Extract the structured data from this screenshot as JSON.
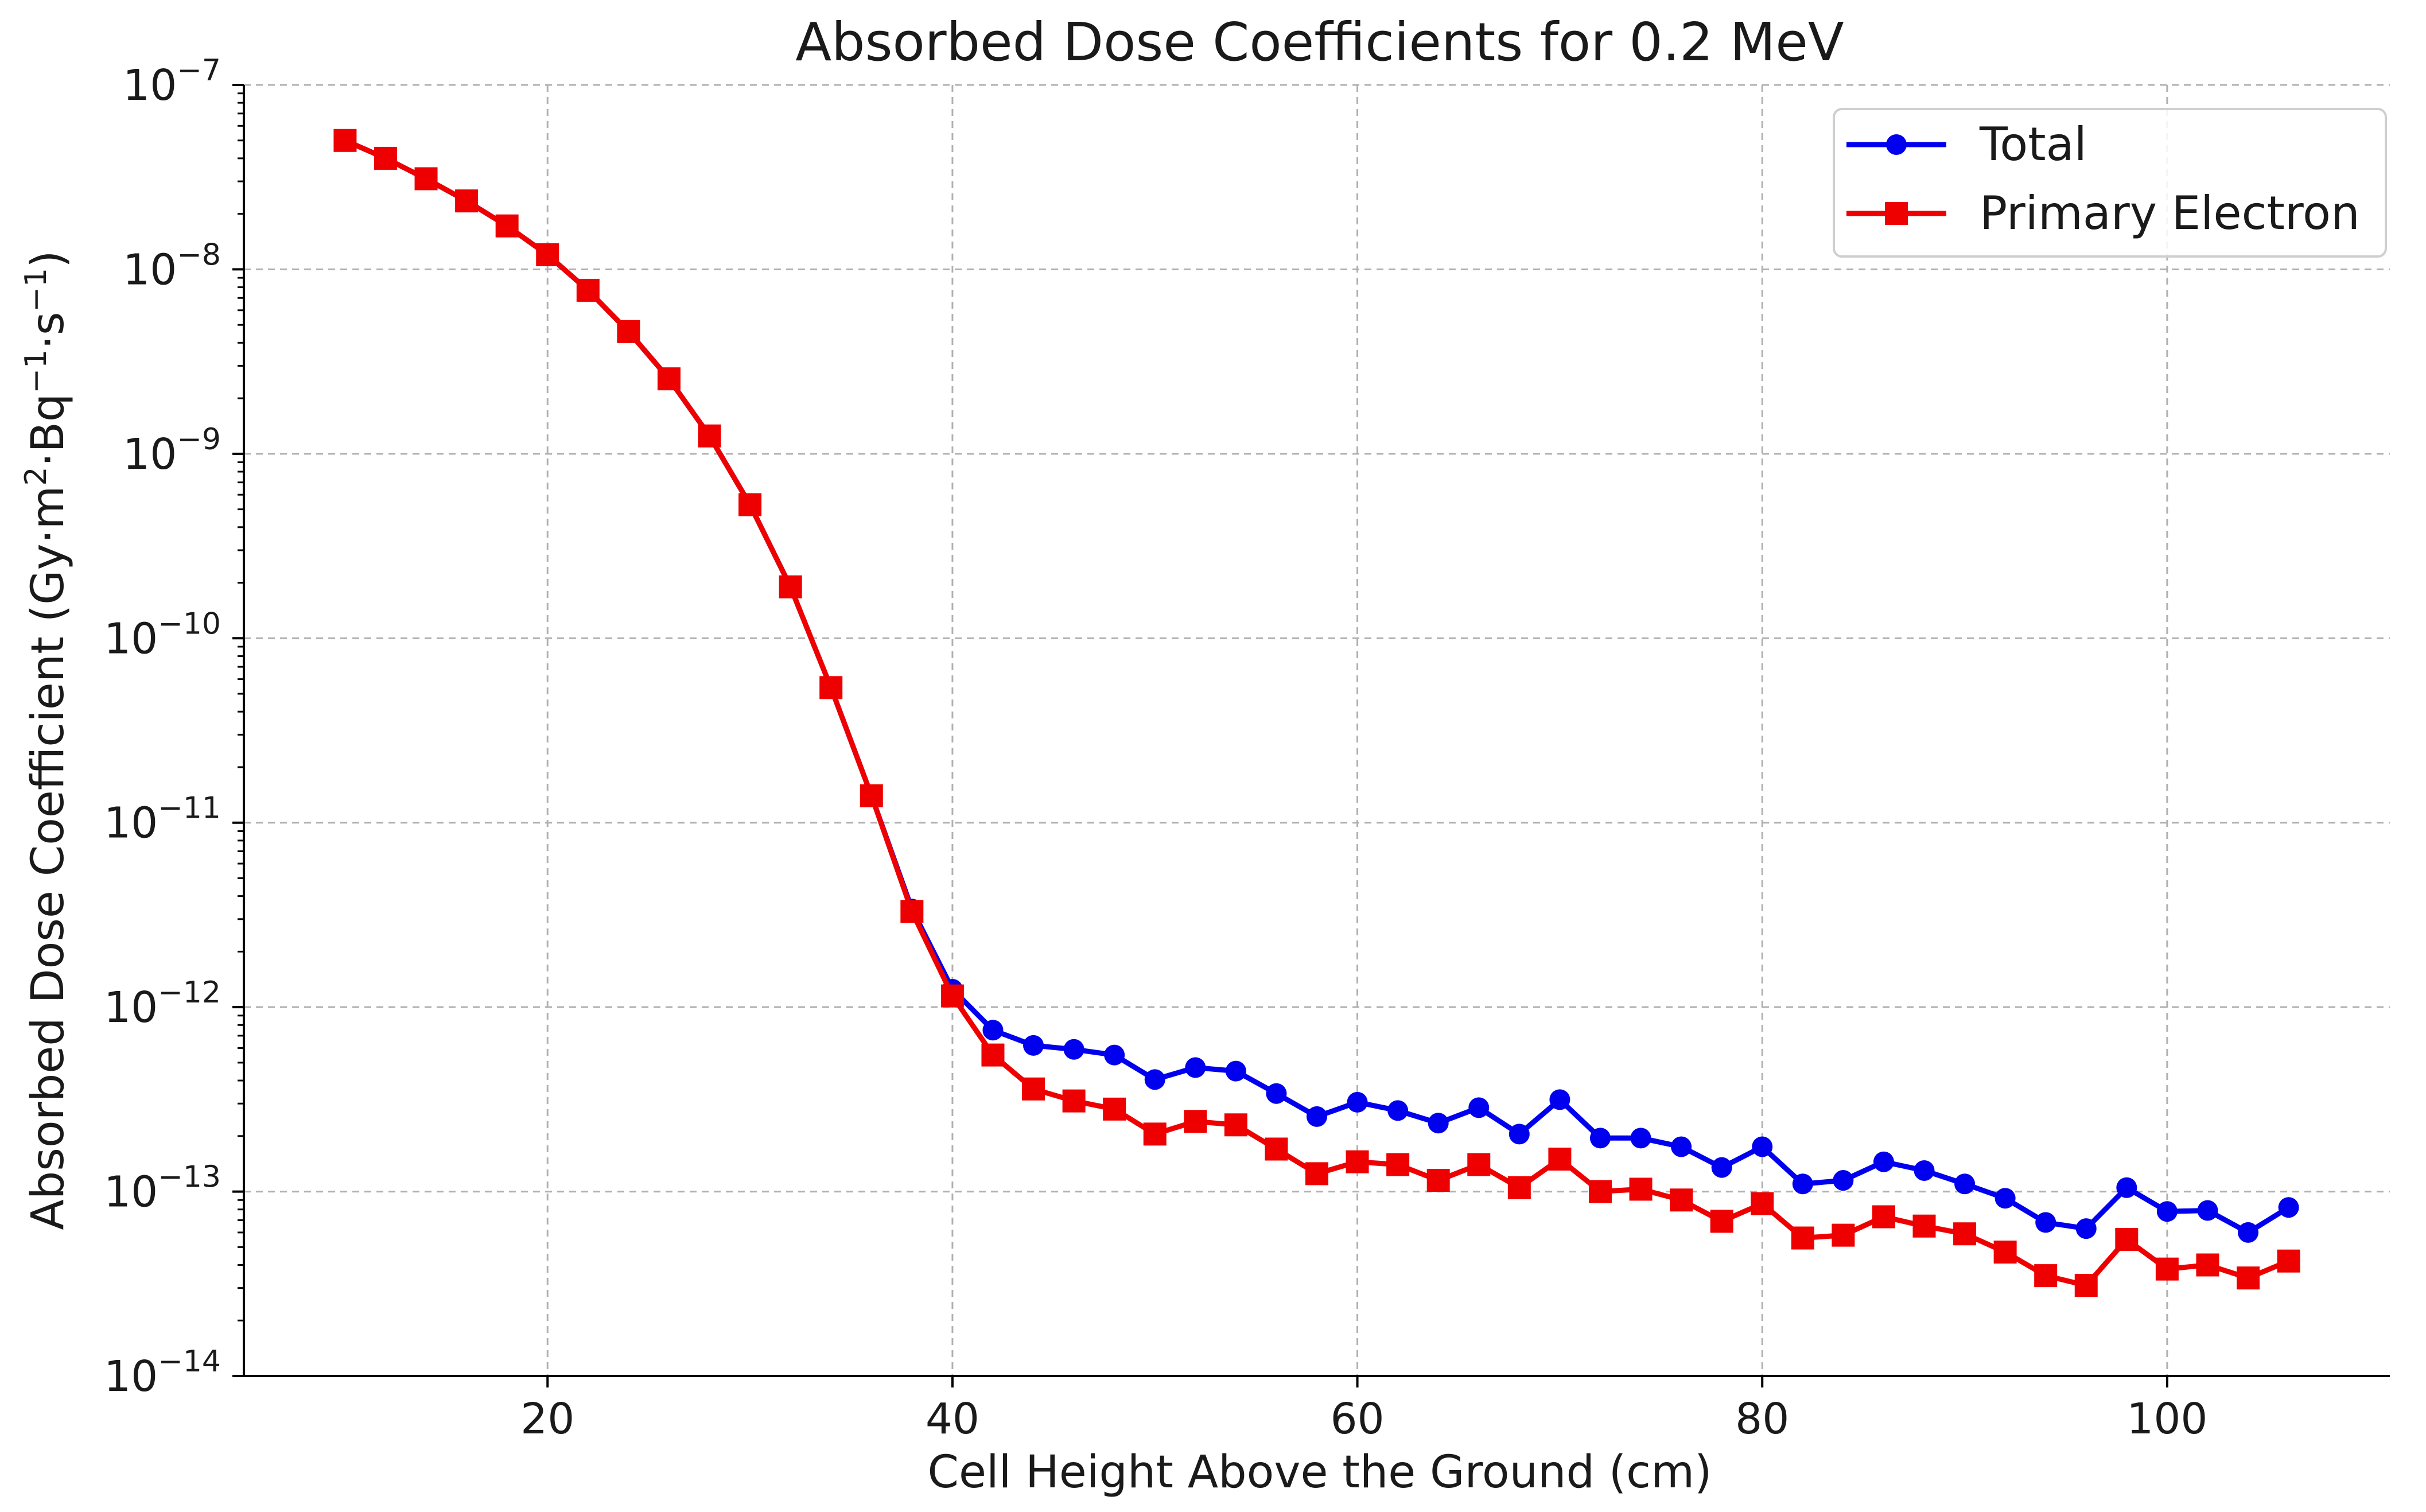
{
  "chart_data": {
    "type": "line",
    "title": "Absorbed Dose Coefficients for 0.2 MeV",
    "xlabel": "Cell Height Above the Ground (cm)",
    "ylabel": {
      "base": "Absorbed Dose Coefficient (Gy·m",
      "sup1": "2",
      "mid1": "·Bq",
      "sup2": "−1",
      "mid2": "·s",
      "sup3": "−1",
      "end": ")"
    },
    "xlim": [
      5,
      111
    ],
    "ylim_log10": [
      -14,
      -7
    ],
    "yscale": "log",
    "grid": true,
    "legend_position": "top-right",
    "x_ticks": [
      20,
      40,
      60,
      80,
      100
    ],
    "x_tick_labels": [
      "20",
      "40",
      "60",
      "80",
      "100"
    ],
    "y_ticks_exp": [
      -7,
      -8,
      -9,
      -10,
      -11,
      -12,
      -13,
      -14
    ],
    "y_tick_labels": [
      {
        "base": "10",
        "exp": "−7"
      },
      {
        "base": "10",
        "exp": "−8"
      },
      {
        "base": "10",
        "exp": "−9"
      },
      {
        "base": "10",
        "exp": "−10"
      },
      {
        "base": "10",
        "exp": "−11"
      },
      {
        "base": "10",
        "exp": "−12"
      },
      {
        "base": "10",
        "exp": "−13"
      },
      {
        "base": "10",
        "exp": "−14"
      }
    ],
    "x": [
      10,
      12,
      14,
      16,
      18,
      20,
      22,
      24,
      26,
      28,
      30,
      32,
      34,
      36,
      38,
      40,
      42,
      44,
      46,
      48,
      50,
      52,
      54,
      56,
      58,
      60,
      62,
      64,
      66,
      68,
      70,
      72,
      74,
      76,
      78,
      80,
      82,
      84,
      86,
      88,
      90,
      92,
      94,
      96,
      98,
      100,
      102,
      104,
      106
    ],
    "series": [
      {
        "name": "Total",
        "color": "#0000ee",
        "marker": "circle",
        "values": [
          5e-08,
          4e-08,
          3.1e-08,
          2.35e-08,
          1.72e-08,
          1.2e-08,
          7.7e-09,
          4.6e-09,
          2.55e-09,
          1.25e-09,
          5.3e-10,
          1.9e-10,
          5.4e-11,
          1.4e-11,
          3.4e-12,
          1.25e-12,
          7.5e-13,
          6.2e-13,
          5.9e-13,
          5.5e-13,
          4.05e-13,
          4.7e-13,
          4.5e-13,
          3.4e-13,
          2.55e-13,
          3.05e-13,
          2.75e-13,
          2.35e-13,
          2.85e-13,
          2.05e-13,
          3.15e-13,
          1.95e-13,
          1.95e-13,
          1.75e-13,
          1.35e-13,
          1.75e-13,
          1.1e-13,
          1.15e-13,
          1.45e-13,
          1.3e-13,
          1.1e-13,
          9.2e-14,
          6.8e-14,
          6.3e-14,
          1.05e-13,
          7.8e-14,
          7.9e-14,
          6e-14,
          8.2e-14
        ]
      },
      {
        "name": "Primary Electron",
        "color": "#ee0000",
        "marker": "square",
        "values": [
          5e-08,
          4e-08,
          3.1e-08,
          2.35e-08,
          1.72e-08,
          1.2e-08,
          7.7e-09,
          4.6e-09,
          2.55e-09,
          1.25e-09,
          5.3e-10,
          1.9e-10,
          5.4e-11,
          1.4e-11,
          3.3e-12,
          1.15e-12,
          5.5e-13,
          3.6e-13,
          3.1e-13,
          2.8e-13,
          2.05e-13,
          2.4e-13,
          2.3e-13,
          1.7e-13,
          1.25e-13,
          1.45e-13,
          1.4e-13,
          1.15e-13,
          1.4e-13,
          1.05e-13,
          1.5e-13,
          1e-13,
          1.03e-13,
          9e-14,
          6.9e-14,
          8.6e-14,
          5.6e-14,
          5.8e-14,
          7.3e-14,
          6.5e-14,
          5.9e-14,
          4.7e-14,
          3.5e-14,
          3.1e-14,
          5.5e-14,
          3.8e-14,
          4e-14,
          3.4e-14,
          4.2e-14
        ]
      }
    ]
  }
}
